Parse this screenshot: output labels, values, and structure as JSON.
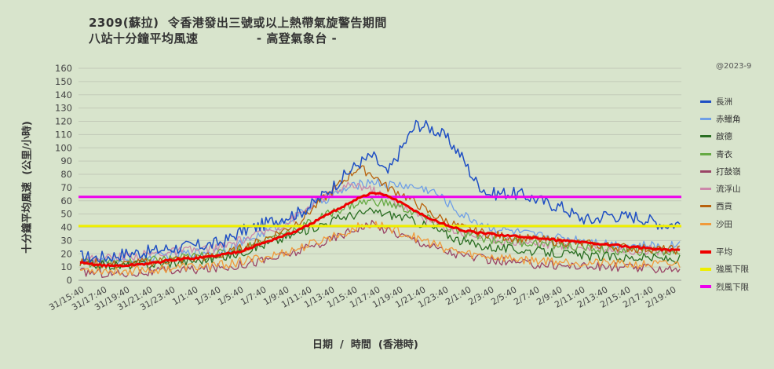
{
  "title_line1": "2309(蘇拉)  令香港發出三號或以上熱帶氣旋警告期間",
  "title_line2": "八站十分鐘平均風速             - 高登氣象台 -",
  "copyright": "@2023-9",
  "chart_data": {
    "type": "line",
    "title": "2309(蘇拉)  令香港發出三號或以上熱帶氣旋警告期間 八站十分鐘平均風速 - 高登氣象台 -",
    "xlabel": "日期  /  時間  (香港時)",
    "ylabel": "十分鐘平均風速  (公里/小時)",
    "ylim": [
      0,
      160
    ],
    "yticks": [
      0,
      10,
      20,
      30,
      40,
      50,
      60,
      70,
      80,
      90,
      100,
      110,
      120,
      130,
      140,
      150,
      160
    ],
    "x_tick_labels": [
      "31/15:40",
      "31/17:40",
      "31/19:40",
      "31/21:40",
      "31/23:40",
      "1/1:40",
      "1/3:40",
      "1/5:40",
      "1/7:40",
      "1/9:40",
      "1/11:40",
      "1/13:40",
      "1/15:40",
      "1/17:40",
      "1/19:40",
      "1/21:40",
      "1/23:40",
      "2/1:40",
      "2/3:40",
      "2/5:40",
      "2/7:40",
      "2/9:40",
      "2/11:40",
      "2/13:40",
      "2/15:40",
      "2/17:40",
      "2/19:40"
    ],
    "grid": true,
    "legend_position": "right",
    "series": [
      {
        "name": "長洲",
        "color": "#1f4fc4",
        "width": 1.5,
        "values": [
          18,
          17,
          18,
          20,
          21,
          22,
          24,
          25,
          26,
          27,
          30,
          37,
          40,
          44,
          48,
          51,
          58,
          68,
          78,
          88,
          94,
          80,
          100,
          118,
          115,
          108,
          95,
          75,
          65,
          66,
          65,
          62,
          58,
          55,
          48,
          45,
          50,
          48,
          48,
          45,
          42,
          43
        ]
      },
      {
        "name": "赤鱲角",
        "color": "#6f9fe6",
        "width": 1.3,
        "values": [
          15,
          14,
          13,
          14,
          15,
          17,
          19,
          20,
          21,
          22,
          24,
          28,
          33,
          38,
          44,
          50,
          58,
          62,
          68,
          72,
          75,
          72,
          72,
          70,
          68,
          60,
          50,
          45,
          40,
          38,
          36,
          34,
          33,
          32,
          31,
          30,
          28,
          27,
          26,
          26,
          25,
          28
        ]
      },
      {
        "name": "啟德",
        "color": "#2a6e22",
        "width": 1.3,
        "values": [
          12,
          12,
          11,
          11,
          12,
          12,
          13,
          14,
          15,
          16,
          18,
          21,
          25,
          28,
          32,
          36,
          40,
          44,
          48,
          50,
          52,
          50,
          48,
          44,
          40,
          35,
          30,
          27,
          25,
          24,
          23,
          22,
          21,
          20,
          19,
          18,
          18,
          17,
          17,
          17,
          16,
          16
        ]
      },
      {
        "name": "青衣",
        "color": "#66aa44",
        "width": 1.3,
        "values": [
          14,
          13,
          13,
          13,
          14,
          15,
          16,
          17,
          18,
          19,
          21,
          24,
          28,
          32,
          36,
          40,
          45,
          50,
          55,
          58,
          60,
          58,
          55,
          50,
          45,
          40,
          36,
          33,
          31,
          30,
          29,
          28,
          27,
          26,
          25,
          24,
          23,
          22,
          22,
          22,
          21,
          22
        ]
      },
      {
        "name": "打鼓嶺",
        "color": "#9a4466",
        "width": 1.3,
        "values": [
          6,
          6,
          5,
          5,
          6,
          6,
          7,
          8,
          8,
          9,
          10,
          12,
          14,
          16,
          19,
          22,
          26,
          30,
          35,
          40,
          42,
          38,
          34,
          30,
          26,
          22,
          19,
          17,
          15,
          14,
          13,
          12,
          12,
          11,
          11,
          10,
          10,
          10,
          9,
          9,
          9,
          9
        ]
      },
      {
        "name": "流浮山",
        "color": "#cc88aa",
        "width": 1.3,
        "values": [
          16,
          16,
          17,
          18,
          19,
          20,
          21,
          22,
          23,
          24,
          26,
          30,
          34,
          38,
          42,
          50,
          58,
          65,
          70,
          72,
          68,
          62,
          56,
          50,
          44,
          40,
          36,
          34,
          32,
          30,
          29,
          28,
          27,
          26,
          25,
          24,
          24,
          23,
          23,
          23,
          22,
          22
        ]
      },
      {
        "name": "西貢",
        "color": "#b8620c",
        "width": 1.3,
        "values": [
          13,
          13,
          12,
          12,
          13,
          14,
          15,
          16,
          17,
          18,
          20,
          24,
          28,
          33,
          38,
          45,
          55,
          65,
          75,
          85,
          80,
          70,
          65,
          58,
          50,
          45,
          40,
          37,
          35,
          33,
          32,
          31,
          30,
          29,
          28,
          27,
          26,
          25,
          24,
          24,
          23,
          23
        ]
      },
      {
        "name": "沙田",
        "color": "#f09a3a",
        "width": 1.3,
        "values": [
          8,
          8,
          7,
          7,
          8,
          8,
          9,
          10,
          10,
          11,
          12,
          14,
          16,
          18,
          21,
          24,
          28,
          32,
          36,
          40,
          42,
          40,
          36,
          32,
          28,
          24,
          21,
          19,
          18,
          17,
          16,
          15,
          15,
          14,
          14,
          13,
          13,
          12,
          12,
          12,
          12,
          12
        ]
      },
      {
        "name": "平均",
        "color": "#ee0000",
        "width": 3,
        "values": [
          13,
          12,
          11,
          11,
          12,
          13,
          15,
          16,
          17,
          18,
          20,
          22,
          26,
          30,
          34,
          38,
          44,
          50,
          56,
          62,
          66,
          64,
          58,
          52,
          46,
          42,
          38,
          36,
          35,
          34,
          33,
          32,
          31,
          30,
          29,
          28,
          27,
          26,
          25,
          24,
          23,
          23
        ]
      },
      {
        "name": "強風下限",
        "color": "#eeee00",
        "width": 3,
        "values": [
          41,
          41
        ]
      },
      {
        "name": "烈風下限",
        "color": "#ee00ee",
        "width": 3,
        "values": [
          63,
          63
        ]
      }
    ]
  }
}
